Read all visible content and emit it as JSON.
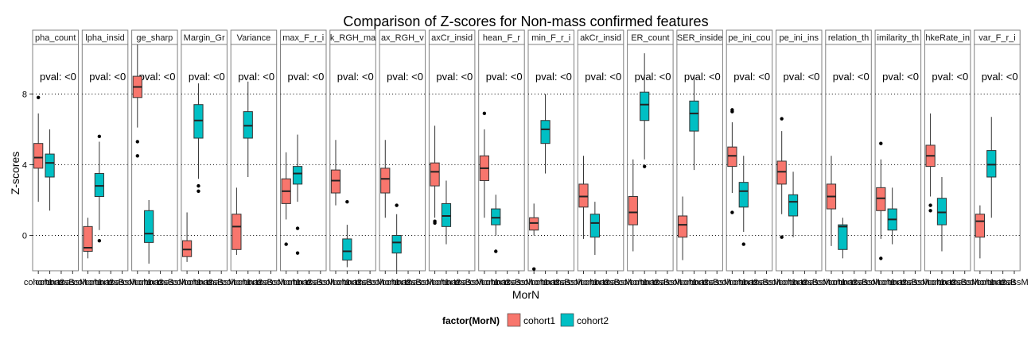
{
  "chart_data": {
    "type": "box",
    "title": "Comparison of Z-scores for Non-mass confirmed features",
    "xlabel": "MorN",
    "ylabel": "Z-scores",
    "ylim": [
      -2,
      10.8
    ],
    "yticks": [
      0,
      4,
      8
    ],
    "categories": [
      "cohort1",
      "cohort2",
      "massB",
      "massM"
    ],
    "category_tick_labels": [
      "cohort1",
      "cohort2",
      "massB",
      "massM"
    ],
    "pval_text": "pval: <0",
    "grid": "dotted horizontal lines at y ticks",
    "legend": {
      "title": "factor(MorN)",
      "position": "bottom",
      "entries": [
        {
          "label": "cohort1",
          "color": "#F8766D"
        },
        {
          "label": "cohort2",
          "color": "#00BFC4"
        }
      ]
    },
    "panels": [
      {
        "label": "pha_count",
        "boxes": [
          {
            "series": "cohort1",
            "min": 1.9,
            "q1": 3.8,
            "median": 4.4,
            "q3": 5.2,
            "max": 6.9,
            "outliers": [
              7.8
            ]
          },
          {
            "series": "cohort2",
            "min": 1.4,
            "q1": 3.3,
            "median": 4.1,
            "q3": 4.6,
            "max": 6.0,
            "outliers": []
          }
        ]
      },
      {
        "label": "lpha_insid",
        "boxes": [
          {
            "series": "cohort1",
            "min": -1.3,
            "q1": -0.9,
            "median": -0.7,
            "q3": 0.5,
            "max": 1.0,
            "outliers": []
          },
          {
            "series": "cohort2",
            "min": 0.3,
            "q1": 2.2,
            "median": 2.8,
            "q3": 3.5,
            "max": 5.3,
            "outliers": [
              5.6,
              -0.3
            ]
          }
        ]
      },
      {
        "label": "ge_sharp",
        "boxes": [
          {
            "series": "cohort1",
            "min": 6.1,
            "q1": 7.8,
            "median": 8.4,
            "q3": 9.0,
            "max": 10.9,
            "outliers": [
              5.3,
              4.5
            ]
          },
          {
            "series": "cohort2",
            "min": -1.6,
            "q1": -0.4,
            "median": 0.1,
            "q3": 1.4,
            "max": 2.0,
            "outliers": []
          }
        ]
      },
      {
        "label": "Margin_Gr",
        "boxes": [
          {
            "series": "cohort1",
            "min": -1.5,
            "q1": -1.2,
            "median": -0.8,
            "q3": -0.3,
            "max": 1.3,
            "outliers": []
          },
          {
            "series": "cohort2",
            "min": 3.2,
            "q1": 5.5,
            "median": 6.5,
            "q3": 7.4,
            "max": 8.6,
            "outliers": [
              2.8,
              2.5
            ]
          }
        ]
      },
      {
        "label": "Variance",
        "boxes": [
          {
            "series": "cohort1",
            "min": -1.1,
            "q1": -0.8,
            "median": 0.5,
            "q3": 1.2,
            "max": 2.7,
            "outliers": []
          },
          {
            "series": "cohort2",
            "min": 3.3,
            "q1": 5.5,
            "median": 6.2,
            "q3": 7.0,
            "max": 8.7,
            "outliers": []
          }
        ]
      },
      {
        "label": "max_F_r_i",
        "boxes": [
          {
            "series": "cohort1",
            "min": 0.9,
            "q1": 1.8,
            "median": 2.5,
            "q3": 3.2,
            "max": 4.7,
            "outliers": [
              -0.5
            ]
          },
          {
            "series": "cohort2",
            "min": 1.9,
            "q1": 2.9,
            "median": 3.5,
            "q3": 3.9,
            "max": 5.7,
            "outliers": [
              0.4,
              -1.0
            ]
          }
        ]
      },
      {
        "label": "k_RGH_ma",
        "boxes": [
          {
            "series": "cohort1",
            "min": 1.7,
            "q1": 2.4,
            "median": 3.1,
            "q3": 3.7,
            "max": 5.4,
            "outliers": []
          },
          {
            "series": "cohort2",
            "min": -1.8,
            "q1": -1.4,
            "median": -0.9,
            "q3": -0.2,
            "max": 0.6,
            "outliers": [
              1.9
            ]
          }
        ]
      },
      {
        "label": "ax_RGH_v",
        "boxes": [
          {
            "series": "cohort1",
            "min": 1.0,
            "q1": 2.4,
            "median": 3.2,
            "q3": 3.8,
            "max": 5.4,
            "outliers": []
          },
          {
            "series": "cohort2",
            "min": -2.0,
            "q1": -1.0,
            "median": -0.4,
            "q3": 0.0,
            "max": 1.2,
            "outliers": [
              1.7
            ]
          }
        ]
      },
      {
        "label": "axCr_insid",
        "boxes": [
          {
            "series": "cohort1",
            "min": 1.0,
            "q1": 2.8,
            "median": 3.6,
            "q3": 4.1,
            "max": 6.2,
            "outliers": [
              0.8,
              0.7
            ]
          },
          {
            "series": "cohort2",
            "min": -0.5,
            "q1": 0.5,
            "median": 1.1,
            "q3": 1.8,
            "max": 3.1,
            "outliers": []
          }
        ]
      },
      {
        "label": "hean_F_r",
        "boxes": [
          {
            "series": "cohort1",
            "min": 1.0,
            "q1": 3.1,
            "median": 3.8,
            "q3": 4.5,
            "max": 6.0,
            "outliers": [
              6.9
            ]
          },
          {
            "series": "cohort2",
            "min": 0.0,
            "q1": 0.6,
            "median": 1.0,
            "q3": 1.5,
            "max": 2.3,
            "outliers": [
              -0.9
            ]
          }
        ]
      },
      {
        "label": "min_F_r_i",
        "boxes": [
          {
            "series": "cohort1",
            "min": 0.0,
            "q1": 0.3,
            "median": 0.7,
            "q3": 1.0,
            "max": 1.8,
            "outliers": [
              -1.9,
              -2.3
            ]
          },
          {
            "series": "cohort2",
            "min": 3.5,
            "q1": 5.2,
            "median": 6.0,
            "q3": 6.5,
            "max": 8.0,
            "outliers": []
          }
        ]
      },
      {
        "label": "akCr_insid",
        "boxes": [
          {
            "series": "cohort1",
            "min": -0.2,
            "q1": 1.6,
            "median": 2.2,
            "q3": 2.9,
            "max": 4.5,
            "outliers": []
          },
          {
            "series": "cohort2",
            "min": -1.1,
            "q1": -0.1,
            "median": 0.7,
            "q3": 1.2,
            "max": 1.9,
            "outliers": []
          }
        ]
      },
      {
        "label": "ER_count",
        "boxes": [
          {
            "series": "cohort1",
            "min": -0.9,
            "q1": 0.6,
            "median": 1.3,
            "q3": 2.2,
            "max": 4.3,
            "outliers": []
          },
          {
            "series": "cohort2",
            "min": 4.3,
            "q1": 6.5,
            "median": 7.4,
            "q3": 8.1,
            "max": 10.3,
            "outliers": [
              3.9
            ]
          }
        ]
      },
      {
        "label": "SER_inside",
        "boxes": [
          {
            "series": "cohort1",
            "min": -1.4,
            "q1": -0.1,
            "median": 0.6,
            "q3": 1.1,
            "max": 2.2,
            "outliers": []
          },
          {
            "series": "cohort2",
            "min": 3.7,
            "q1": 5.9,
            "median": 6.9,
            "q3": 7.6,
            "max": 9.0,
            "outliers": []
          }
        ]
      },
      {
        "label": "pe_ini_cou",
        "boxes": [
          {
            "series": "cohort1",
            "min": 2.4,
            "q1": 3.9,
            "median": 4.5,
            "q3": 5.0,
            "max": 6.4,
            "outliers": [
              7.1,
              7.0,
              1.3
            ]
          },
          {
            "series": "cohort2",
            "min": 0.2,
            "q1": 1.6,
            "median": 2.5,
            "q3": 3.0,
            "max": 4.5,
            "outliers": [
              -0.5
            ]
          }
        ]
      },
      {
        "label": "pe_ini_ins",
        "boxes": [
          {
            "series": "cohort1",
            "min": 1.2,
            "q1": 2.9,
            "median": 3.6,
            "q3": 4.2,
            "max": 5.9,
            "outliers": [
              6.6,
              -0.1
            ]
          },
          {
            "series": "cohort2",
            "min": -0.1,
            "q1": 1.1,
            "median": 1.9,
            "q3": 2.3,
            "max": 3.6,
            "outliers": []
          }
        ]
      },
      {
        "label": "relation_th",
        "boxes": [
          {
            "series": "cohort1",
            "min": -0.6,
            "q1": 1.5,
            "median": 2.2,
            "q3": 2.9,
            "max": 4.5,
            "outliers": []
          },
          {
            "series": "cohort2",
            "min": -1.3,
            "q1": -0.8,
            "median": 0.5,
            "q3": 0.6,
            "max": 1.0,
            "outliers": []
          }
        ]
      },
      {
        "label": "imilarity_th",
        "boxes": [
          {
            "series": "cohort1",
            "min": -0.2,
            "q1": 1.4,
            "median": 2.1,
            "q3": 2.7,
            "max": 4.3,
            "outliers": [
              5.2,
              -1.3
            ]
          },
          {
            "series": "cohort2",
            "min": -0.5,
            "q1": 0.3,
            "median": 0.9,
            "q3": 1.5,
            "max": 2.7,
            "outliers": []
          }
        ]
      },
      {
        "label": "hkeRate_in",
        "boxes": [
          {
            "series": "cohort1",
            "min": 2.2,
            "q1": 3.9,
            "median": 4.5,
            "q3": 5.1,
            "max": 6.9,
            "outliers": [
              1.7,
              1.4
            ]
          },
          {
            "series": "cohort2",
            "min": -0.9,
            "q1": 0.6,
            "median": 1.3,
            "q3": 2.1,
            "max": 3.3,
            "outliers": []
          }
        ]
      },
      {
        "label": "var_F_r_i",
        "boxes": [
          {
            "series": "cohort1",
            "min": -1.3,
            "q1": -0.1,
            "median": 0.8,
            "q3": 1.2,
            "max": 1.7,
            "outliers": []
          },
          {
            "series": "cohort2",
            "min": 1.0,
            "q1": 3.3,
            "median": 4.0,
            "q3": 4.8,
            "max": 6.7,
            "outliers": []
          }
        ]
      }
    ]
  }
}
